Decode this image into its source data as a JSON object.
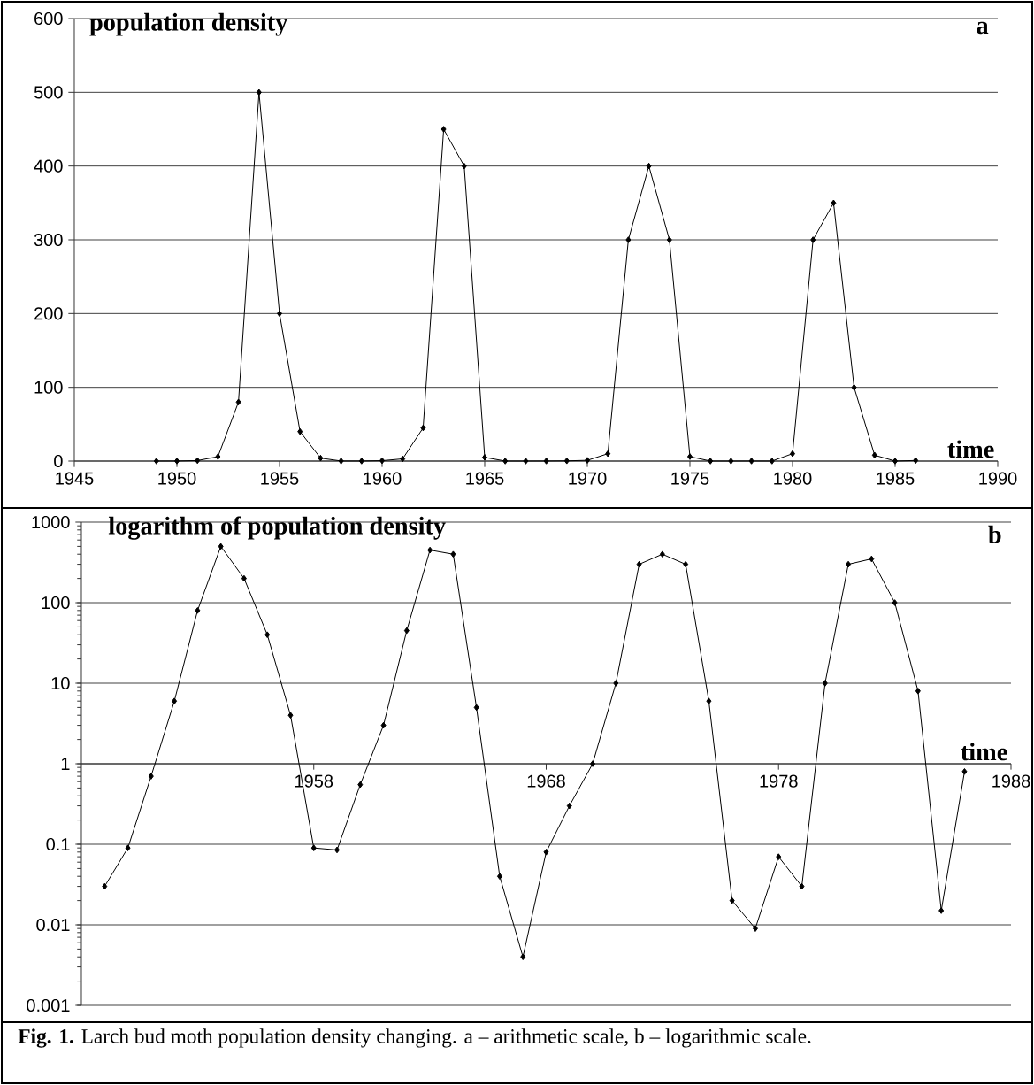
{
  "chart_data": [
    {
      "type": "line",
      "ylabel": "population density",
      "xlabel": "time",
      "annotations": [
        "a"
      ],
      "x": [
        1949,
        1950,
        1951,
        1952,
        1953,
        1954,
        1955,
        1956,
        1957,
        1958,
        1959,
        1960,
        1961,
        1962,
        1963,
        1964,
        1965,
        1966,
        1967,
        1968,
        1969,
        1970,
        1971,
        1972,
        1973,
        1974,
        1975,
        1976,
        1977,
        1978,
        1979,
        1980,
        1981,
        1982,
        1983,
        1984,
        1985,
        1986
      ],
      "series": [
        {
          "color": "#000000",
          "values": [
            0.03,
            0.09,
            0.7,
            6,
            80,
            500,
            200,
            40,
            4,
            0.09,
            0.085,
            0.55,
            3,
            45,
            450,
            400,
            5,
            0.04,
            0.004,
            0.08,
            0.3,
            1,
            10,
            300,
            400,
            300,
            6,
            0.02,
            0.009,
            0.07,
            0.03,
            10,
            300,
            350,
            100,
            8,
            0.015,
            0.8
          ]
        }
      ],
      "xlim": [
        1945,
        1990
      ],
      "xticks": [
        1945,
        1950,
        1955,
        1960,
        1965,
        1970,
        1975,
        1980,
        1985,
        1990
      ],
      "ylim": [
        0,
        600
      ],
      "yticks": [
        0,
        100,
        200,
        300,
        400,
        500,
        600
      ],
      "grid": "y",
      "marker": "diamond"
    },
    {
      "type": "line",
      "ylabel": "logarithm of population density",
      "xlabel": "time",
      "annotations": [
        "b",
        "**Fig. 1.** Larch bud moth population density changing. a – arithmetic scale, b – logarithmic scale."
      ],
      "x": [
        1949,
        1950,
        1951,
        1952,
        1953,
        1954,
        1955,
        1956,
        1957,
        1958,
        1959,
        1960,
        1961,
        1962,
        1963,
        1964,
        1965,
        1966,
        1967,
        1968,
        1969,
        1970,
        1971,
        1972,
        1973,
        1974,
        1975,
        1976,
        1977,
        1978,
        1979,
        1980,
        1981,
        1982,
        1983,
        1984,
        1985,
        1986
      ],
      "series": [
        {
          "color": "#000000",
          "values": [
            0.03,
            0.09,
            0.7,
            6,
            80,
            500,
            200,
            40,
            4,
            0.09,
            0.085,
            0.55,
            3,
            45,
            450,
            400,
            5,
            0.04,
            0.004,
            0.08,
            0.3,
            1,
            10,
            300,
            400,
            300,
            6,
            0.02,
            0.009,
            0.07,
            0.03,
            10,
            300,
            350,
            100,
            8,
            0.015,
            0.8
          ]
        }
      ],
      "xlim": [
        1948,
        1988
      ],
      "xticks": [
        1958,
        1968,
        1978,
        1988
      ],
      "ylim": [
        0.001,
        1000
      ],
      "yticks": [
        0.001,
        0.01,
        0.1,
        1,
        10,
        100,
        1000
      ],
      "log": "y",
      "grid": "y",
      "marker": "diamond"
    }
  ]
}
